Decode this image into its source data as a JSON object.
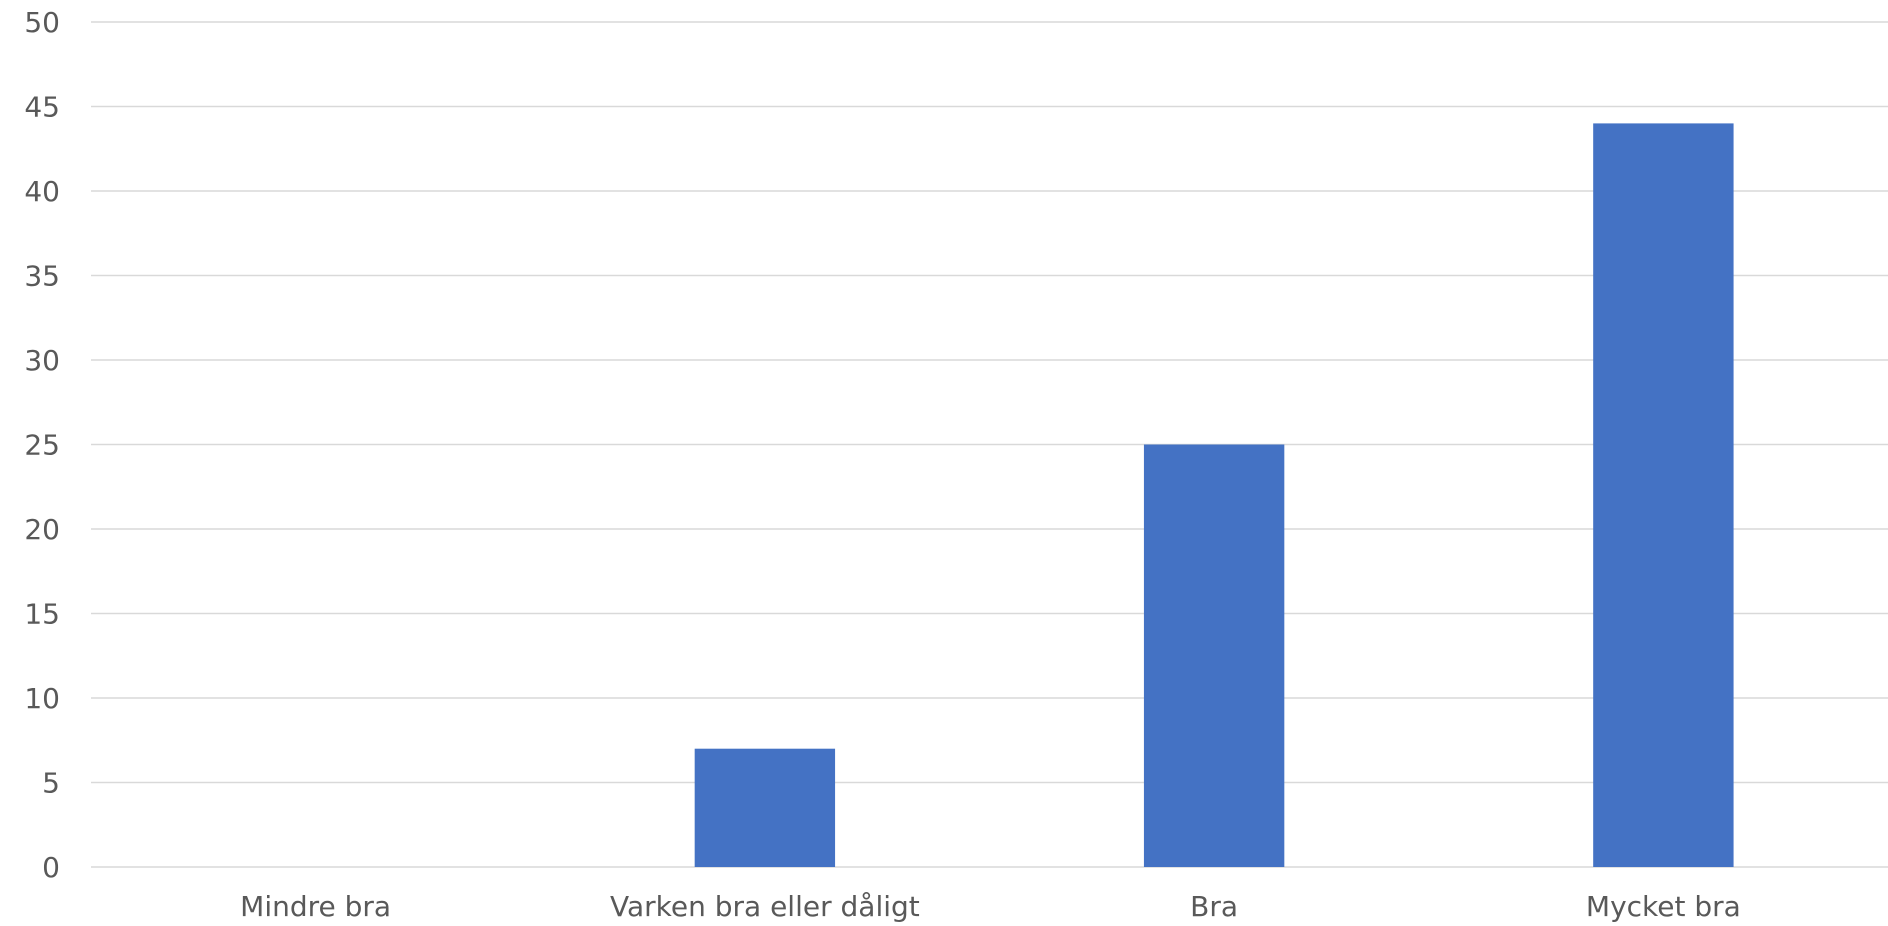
{
  "chart_data": {
    "type": "bar",
    "categories": [
      "Mindre bra",
      "Varken bra eller dåligt",
      "Bra",
      "Mycket bra"
    ],
    "series": [
      {
        "values": [
          0,
          7,
          25,
          44
        ]
      }
    ],
    "title": "",
    "xlabel": "",
    "ylabel": "",
    "ylim": [
      0,
      50
    ],
    "yticks": [
      0,
      5,
      10,
      15,
      20,
      25,
      30,
      35,
      40,
      45,
      50
    ],
    "grid": true,
    "legend": "none",
    "colors": {
      "bar": "#4472C4",
      "grid": "#D9D9D9",
      "text": "#595959"
    }
  }
}
